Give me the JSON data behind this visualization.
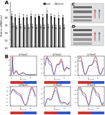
{
  "legend_control": "Control",
  "legend_si": "si(Cn+H)",
  "n_bars": 14,
  "control_values": [
    0.82,
    0.8,
    0.78,
    0.8,
    0.8,
    0.82,
    0.8,
    0.82,
    0.8,
    0.88,
    0.82,
    0.8,
    0.78,
    0.8
  ],
  "si_values": [
    0.58,
    0.54,
    0.56,
    0.54,
    0.54,
    0.56,
    0.54,
    0.55,
    0.54,
    0.56,
    0.55,
    0.54,
    0.54,
    0.54
  ],
  "control_color": "#3a3a3a",
  "si_color": "#aaaaaa",
  "bar_ylim": [
    0.0,
    1.2
  ],
  "bar_yticks": [
    0.0,
    0.2,
    0.4,
    0.6,
    0.8,
    1.0
  ],
  "ylabel_A": "Relative mRNA level",
  "bg_color": "#ffffff",
  "panel_B_bg": "#f5f5f5",
  "line_red": "#cc2222",
  "line_blue": "#4477cc",
  "wb_arrow_red": "#cc3333",
  "wb_arrow_blue": "#3355cc",
  "colorbar_red": "#cc3333",
  "colorbar_blue": "#3355cc"
}
